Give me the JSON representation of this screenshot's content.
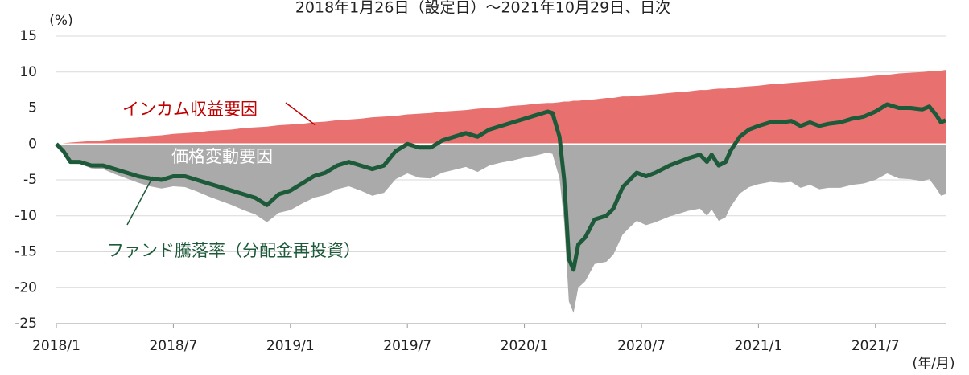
{
  "chart_data": {
    "type": "area",
    "title": "2018年1月26日（設定日）～2021年10月29日、日次",
    "y_label": "(%)",
    "x_label": "(年/月)",
    "x": [
      2018.0,
      2018.03,
      2018.06,
      2018.1,
      2018.15,
      2018.2,
      2018.25,
      2018.3,
      2018.35,
      2018.4,
      2018.45,
      2018.5,
      2018.55,
      2018.6,
      2018.65,
      2018.7,
      2018.75,
      2018.8,
      2018.85,
      2018.9,
      2018.95,
      2019.0,
      2019.05,
      2019.1,
      2019.15,
      2019.2,
      2019.25,
      2019.3,
      2019.35,
      2019.4,
      2019.45,
      2019.5,
      2019.55,
      2019.6,
      2019.65,
      2019.7,
      2019.75,
      2019.8,
      2019.85,
      2019.9,
      2019.95,
      2020.0,
      2020.05,
      2020.1,
      2020.12,
      2020.15,
      2020.17,
      2020.19,
      2020.21,
      2020.23,
      2020.26,
      2020.3,
      2020.35,
      2020.38,
      2020.42,
      2020.45,
      2020.48,
      2020.52,
      2020.56,
      2020.62,
      2020.66,
      2020.7,
      2020.75,
      2020.78,
      2020.8,
      2020.83,
      2020.86,
      2020.88,
      2020.92,
      2020.96,
      2021.0,
      2021.05,
      2021.1,
      2021.14,
      2021.18,
      2021.22,
      2021.26,
      2021.3,
      2021.35,
      2021.4,
      2021.45,
      2021.5,
      2021.55,
      2021.6,
      2021.65,
      2021.7,
      2021.73,
      2021.76,
      2021.78,
      2021.8
    ],
    "series": [
      {
        "name": "インカム収益要因",
        "color": "#e8706e",
        "kind": "area",
        "values": [
          0,
          0.1,
          0.2,
          0.3,
          0.4,
          0.5,
          0.7,
          0.8,
          0.9,
          1.1,
          1.2,
          1.4,
          1.5,
          1.6,
          1.8,
          1.9,
          2.0,
          2.2,
          2.3,
          2.4,
          2.6,
          2.7,
          2.8,
          3.0,
          3.1,
          3.3,
          3.4,
          3.5,
          3.7,
          3.8,
          3.9,
          4.1,
          4.2,
          4.3,
          4.5,
          4.6,
          4.7,
          4.9,
          5.0,
          5.1,
          5.3,
          5.4,
          5.6,
          5.7,
          5.7,
          5.8,
          5.9,
          5.9,
          6.0,
          6.0,
          6.1,
          6.2,
          6.4,
          6.4,
          6.6,
          6.6,
          6.7,
          6.8,
          6.9,
          7.1,
          7.2,
          7.3,
          7.5,
          7.5,
          7.6,
          7.7,
          7.7,
          7.8,
          7.9,
          8.0,
          8.1,
          8.3,
          8.4,
          8.5,
          8.6,
          8.7,
          8.8,
          8.9,
          9.1,
          9.2,
          9.3,
          9.5,
          9.6,
          9.8,
          9.9,
          10.0,
          10.1,
          10.2,
          10.2,
          10.3
        ]
      },
      {
        "name": "価格変動要因",
        "color": "#aaaaaa",
        "kind": "area",
        "values": [
          0,
          -1.1,
          -2.7,
          -2.8,
          -3.4,
          -3.5,
          -4.2,
          -4.8,
          -5.4,
          -5.9,
          -6.2,
          -5.9,
          -6.0,
          -6.6,
          -7.3,
          -7.9,
          -8.5,
          -9.2,
          -9.8,
          -10.9,
          -9.6,
          -9.2,
          -8.3,
          -7.5,
          -7.1,
          -6.3,
          -5.9,
          -6.5,
          -7.2,
          -6.8,
          -4.9,
          -4.1,
          -4.7,
          -4.8,
          -4.0,
          -3.6,
          -3.2,
          -3.9,
          -3.0,
          -2.6,
          -2.3,
          -1.9,
          -1.6,
          -1.2,
          -1.4,
          -4.8,
          -10.9,
          -21.9,
          -23.5,
          -20.0,
          -19.1,
          -16.7,
          -16.4,
          -15.4,
          -12.6,
          -11.6,
          -10.7,
          -11.3,
          -10.9,
          -10.1,
          -9.7,
          -9.3,
          -9.0,
          -10.0,
          -9.1,
          -10.7,
          -10.2,
          -8.8,
          -6.9,
          -6.0,
          -5.6,
          -5.3,
          -5.4,
          -5.3,
          -6.1,
          -5.7,
          -6.3,
          -6.1,
          -6.1,
          -5.7,
          -5.5,
          -5.0,
          -4.1,
          -4.8,
          -4.9,
          -5.2,
          -4.9,
          -6.2,
          -7.2,
          -7.0
        ]
      },
      {
        "name": "ファンド騰落率（分配金再投資）",
        "color": "#1d5a3a",
        "kind": "line",
        "values": [
          0,
          -1,
          -2.5,
          -2.5,
          -3,
          -3,
          -3.5,
          -4,
          -4.5,
          -4.8,
          -5,
          -4.5,
          -4.5,
          -5,
          -5.5,
          -6,
          -6.5,
          -7,
          -7.5,
          -8.5,
          -7,
          -6.5,
          -5.5,
          -4.5,
          -4,
          -3,
          -2.5,
          -3,
          -3.5,
          -3,
          -1,
          0,
          -0.5,
          -0.5,
          0.5,
          1,
          1.5,
          1,
          2,
          2.5,
          3,
          3.5,
          4,
          4.5,
          4.3,
          1,
          -5,
          -16,
          -17.5,
          -14,
          -13,
          -10.5,
          -10,
          -9,
          -6,
          -5,
          -4,
          -4.5,
          -4,
          -3,
          -2.5,
          -2,
          -1.5,
          -2.5,
          -1.5,
          -3,
          -2.5,
          -1,
          1,
          2,
          2.5,
          3,
          3,
          3.2,
          2.5,
          3,
          2.5,
          2.8,
          3,
          3.5,
          3.8,
          4.5,
          5.5,
          5,
          5,
          4.8,
          5.2,
          4,
          3,
          3.3
        ]
      }
    ],
    "xlim": [
      2018.0,
      2021.8
    ],
    "xticks": [
      {
        "value": 2018.0,
        "label": "2018/1"
      },
      {
        "value": 2018.5,
        "label": "2018/7"
      },
      {
        "value": 2019.0,
        "label": "2019/1"
      },
      {
        "value": 2019.5,
        "label": "2019/7"
      },
      {
        "value": 2020.0,
        "label": "2020/1"
      },
      {
        "value": 2020.5,
        "label": "2020/7"
      },
      {
        "value": 2021.0,
        "label": "2021/1"
      },
      {
        "value": 2021.5,
        "label": "2021/7"
      }
    ],
    "ylim": [
      -25,
      15
    ],
    "yticks": [
      -25,
      -20,
      -15,
      -10,
      -5,
      0,
      5,
      10,
      15
    ],
    "grid": true
  }
}
